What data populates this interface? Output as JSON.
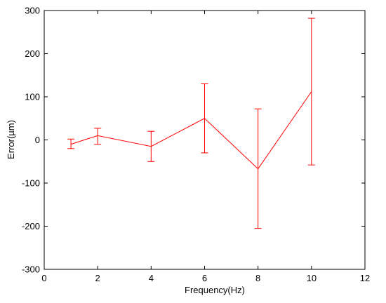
{
  "chart_data": {
    "type": "line",
    "title": "",
    "xlabel": "Frequency(Hz)",
    "ylabel": "Error(µm)",
    "xlim": [
      0,
      12
    ],
    "ylim": [
      -300,
      300
    ],
    "xticks": [
      0,
      2,
      4,
      6,
      8,
      10,
      12
    ],
    "yticks": [
      -300,
      -200,
      -100,
      0,
      100,
      200,
      300
    ],
    "xtick_labels": [
      "0",
      "2",
      "4",
      "6",
      "8",
      "10",
      "12"
    ],
    "ytick_labels": [
      "-300",
      "-200",
      "-100",
      "0",
      "100",
      "200",
      "300"
    ],
    "grid": false,
    "legend": "none",
    "color": "#ff0000",
    "series": [
      {
        "x": [
          1,
          2,
          4,
          6,
          8,
          10
        ],
        "y": [
          -10,
          10,
          -15,
          50,
          -67,
          112
        ],
        "error_low": [
          -20,
          -10,
          -50,
          -30,
          -205,
          -58
        ],
        "error_high": [
          2,
          27,
          20,
          130,
          72,
          282
        ]
      }
    ]
  }
}
